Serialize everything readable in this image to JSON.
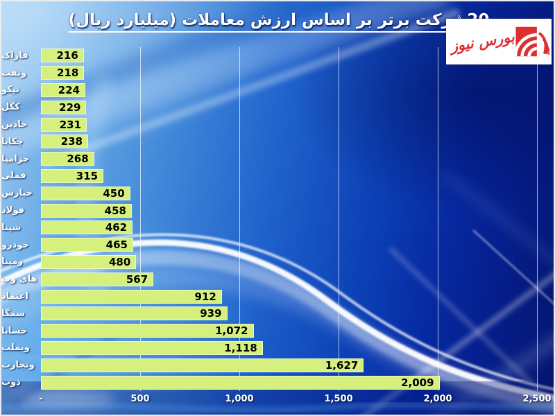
{
  "title": {
    "text": "20شرکت برتر بر اساس ارزش معاملات (میلیارد ریال)"
  },
  "logo": {
    "text": "بورس نیوز",
    "red": "#dd2f2f",
    "background": "#ffffff"
  },
  "chart_data": {
    "type": "bar",
    "orientation": "horizontal",
    "order": "top-to-bottom",
    "title": "20شرکت برتر بر اساس ارزش معاملات (میلیارد ریال)",
    "categories": [
      "فاراک",
      "ونفت",
      "تپکو",
      "کگل",
      "خاذین",
      "چکاپا",
      "خزامیا",
      "فملی",
      "خپارس",
      "فولاد",
      "شپنا",
      "خودرو",
      "رمپنا",
      "های وب",
      "اعتماد",
      "سمگا",
      "خساپا",
      "وبملت",
      "وتجارت",
      "ذوب"
    ],
    "values": [
      216,
      218,
      224,
      229,
      231,
      238,
      268,
      315,
      450,
      458,
      462,
      465,
      480,
      567,
      912,
      939,
      1072,
      1118,
      1627,
      2009
    ],
    "value_labels": [
      "216",
      "218",
      "224",
      "229",
      "231",
      "238",
      "268",
      "315",
      "450",
      "458",
      "462",
      "465",
      "480",
      "567",
      "912",
      "939",
      "1,072",
      "1,118",
      "1,627",
      "2,009"
    ],
    "x_ticks": [
      {
        "value": 0,
        "label": "-"
      },
      {
        "value": 500,
        "label": "500"
      },
      {
        "value": 1000,
        "label": "1,000"
      },
      {
        "value": 1500,
        "label": "1,500"
      },
      {
        "value": 2000,
        "label": "2,000"
      },
      {
        "value": 2500,
        "label": "2,500"
      }
    ],
    "xlim": [
      0,
      2500
    ],
    "grid": true,
    "legend": false,
    "style": {
      "bar_color": "#d6f07e",
      "value_text_color": "#000000",
      "label_color": "#ffffff",
      "grid_color": "#ffffff",
      "background_palette": [
        "#9ccaf0",
        "#3e85d8",
        "#0d43b8",
        "#04156e"
      ]
    }
  }
}
